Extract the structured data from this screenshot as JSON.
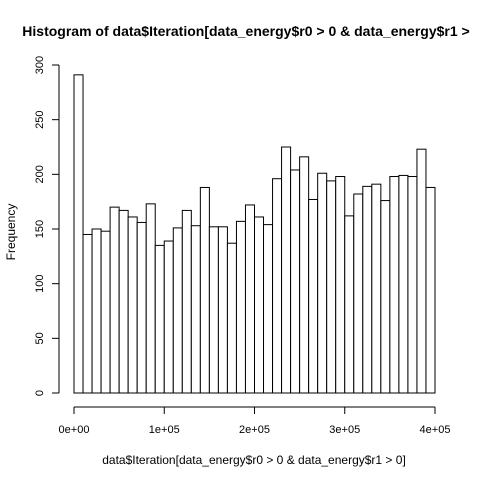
{
  "chart_data": {
    "type": "bar",
    "title": "Histogram of data$Iteration[data_energy$r0 > 0 & data_energy$r1 >",
    "xlabel": "data$Iteration[data_energy$r0 > 0 & data_energy$r1 > 0]",
    "ylabel": "Frequency",
    "bin_width": 10000,
    "bin_start": 0,
    "xlim": [
      0,
      400000
    ],
    "ylim": [
      0,
      300
    ],
    "x_ticks": [
      0,
      100000,
      200000,
      300000,
      400000
    ],
    "x_tick_labels": [
      "0e+00",
      "1e+05",
      "2e+05",
      "3e+05",
      "4e+05"
    ],
    "y_ticks": [
      0,
      50,
      100,
      150,
      200,
      250,
      300
    ],
    "y_tick_labels": [
      "0",
      "50",
      "100",
      "150",
      "200",
      "250",
      "300"
    ],
    "values": [
      291,
      145,
      150,
      148,
      170,
      167,
      161,
      156,
      173,
      135,
      139,
      151,
      167,
      153,
      188,
      152,
      152,
      137,
      157,
      172,
      161,
      154,
      196,
      225,
      204,
      216,
      177,
      201,
      194,
      198,
      162,
      182,
      189,
      191,
      176,
      198,
      199,
      198,
      223,
      188
    ],
    "grid": false,
    "bar_fill": "#ffffff",
    "bar_stroke": "#000000"
  }
}
